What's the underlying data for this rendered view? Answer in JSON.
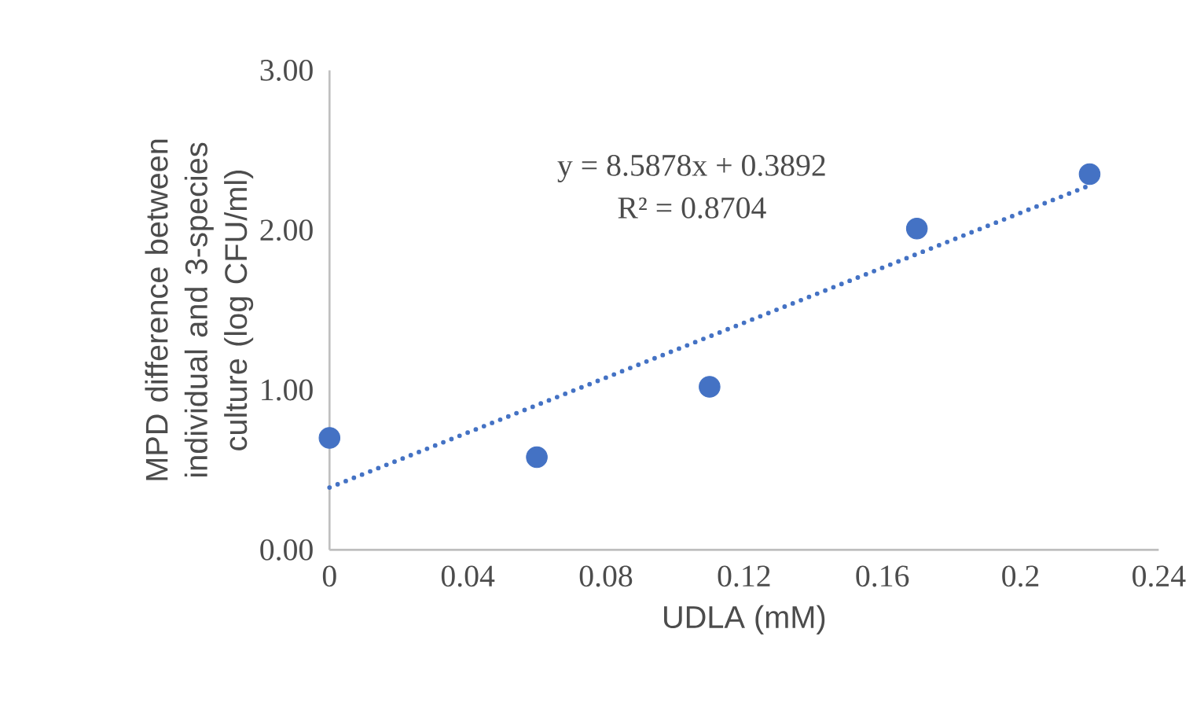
{
  "chart_data": {
    "type": "scatter",
    "xlabel": "UDLA (mM)",
    "ylabel": "MPD difference between individual and 3-species culture (log CFU/ml)",
    "annotations": [
      "y = 8.5878x + 0.3892",
      "R² = 0.8704"
    ],
    "x": [
      0,
      0.06,
      0.11,
      0.17,
      0.22
    ],
    "series": [
      {
        "color": "#4472c4",
        "values": [
          0.7,
          0.58,
          1.02,
          2.01,
          2.35
        ],
        "marker": "circle"
      },
      {
        "type": "line",
        "color": "#4472c4",
        "x": [
          0,
          0.22
        ],
        "values": [
          0.39,
          2.28
        ],
        "line_style": "dotted",
        "marker": "none"
      }
    ],
    "xlim": [
      0,
      0.24
    ],
    "xticks": [
      0,
      0.04,
      0.08,
      0.12,
      0.16,
      0.2,
      0.24
    ],
    "ylim": [
      0,
      3
    ],
    "yticks": [
      {
        "value": 0,
        "label": "0.00"
      },
      {
        "value": 1,
        "label": "1.00"
      },
      {
        "value": 2,
        "label": "2.00"
      },
      {
        "value": 3,
        "label": "3.00"
      }
    ],
    "grid": false
  }
}
